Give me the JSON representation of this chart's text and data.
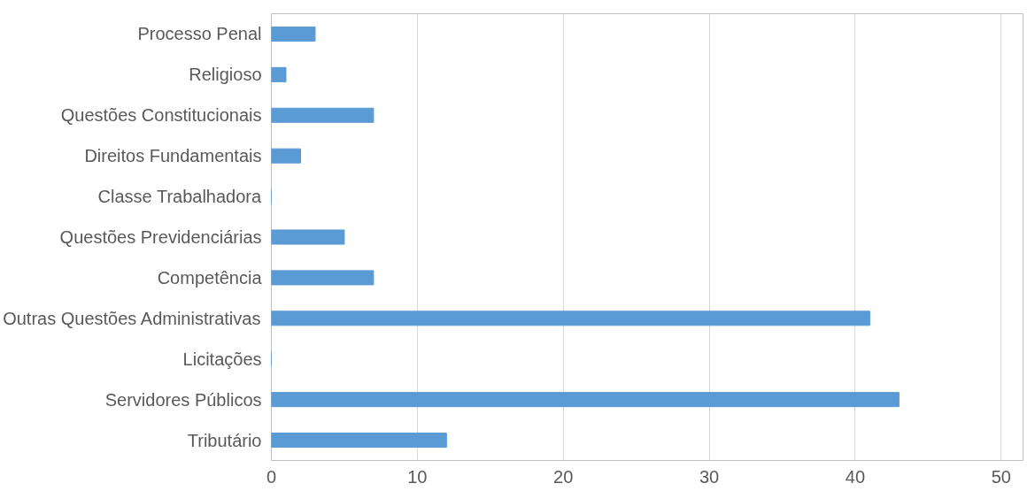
{
  "chart_data": {
    "type": "bar",
    "orientation": "horizontal",
    "categories": [
      "Processo Penal",
      "Religioso",
      "Questões Constitucionais",
      "Direitos Fundamentais",
      "Classe Trabalhadora",
      "Questões Previdenciárias",
      "Competência",
      "Outras Questões Administrativas",
      "Licitações",
      "Servidores Públicos",
      "Tributário"
    ],
    "values": [
      3,
      1,
      7,
      2,
      0,
      5,
      7,
      41,
      0,
      43,
      12
    ],
    "color": "#5b9bd5",
    "xlim": [
      0,
      50
    ],
    "xticks": [
      0,
      10,
      20,
      30,
      40,
      50
    ],
    "grid": "x"
  }
}
